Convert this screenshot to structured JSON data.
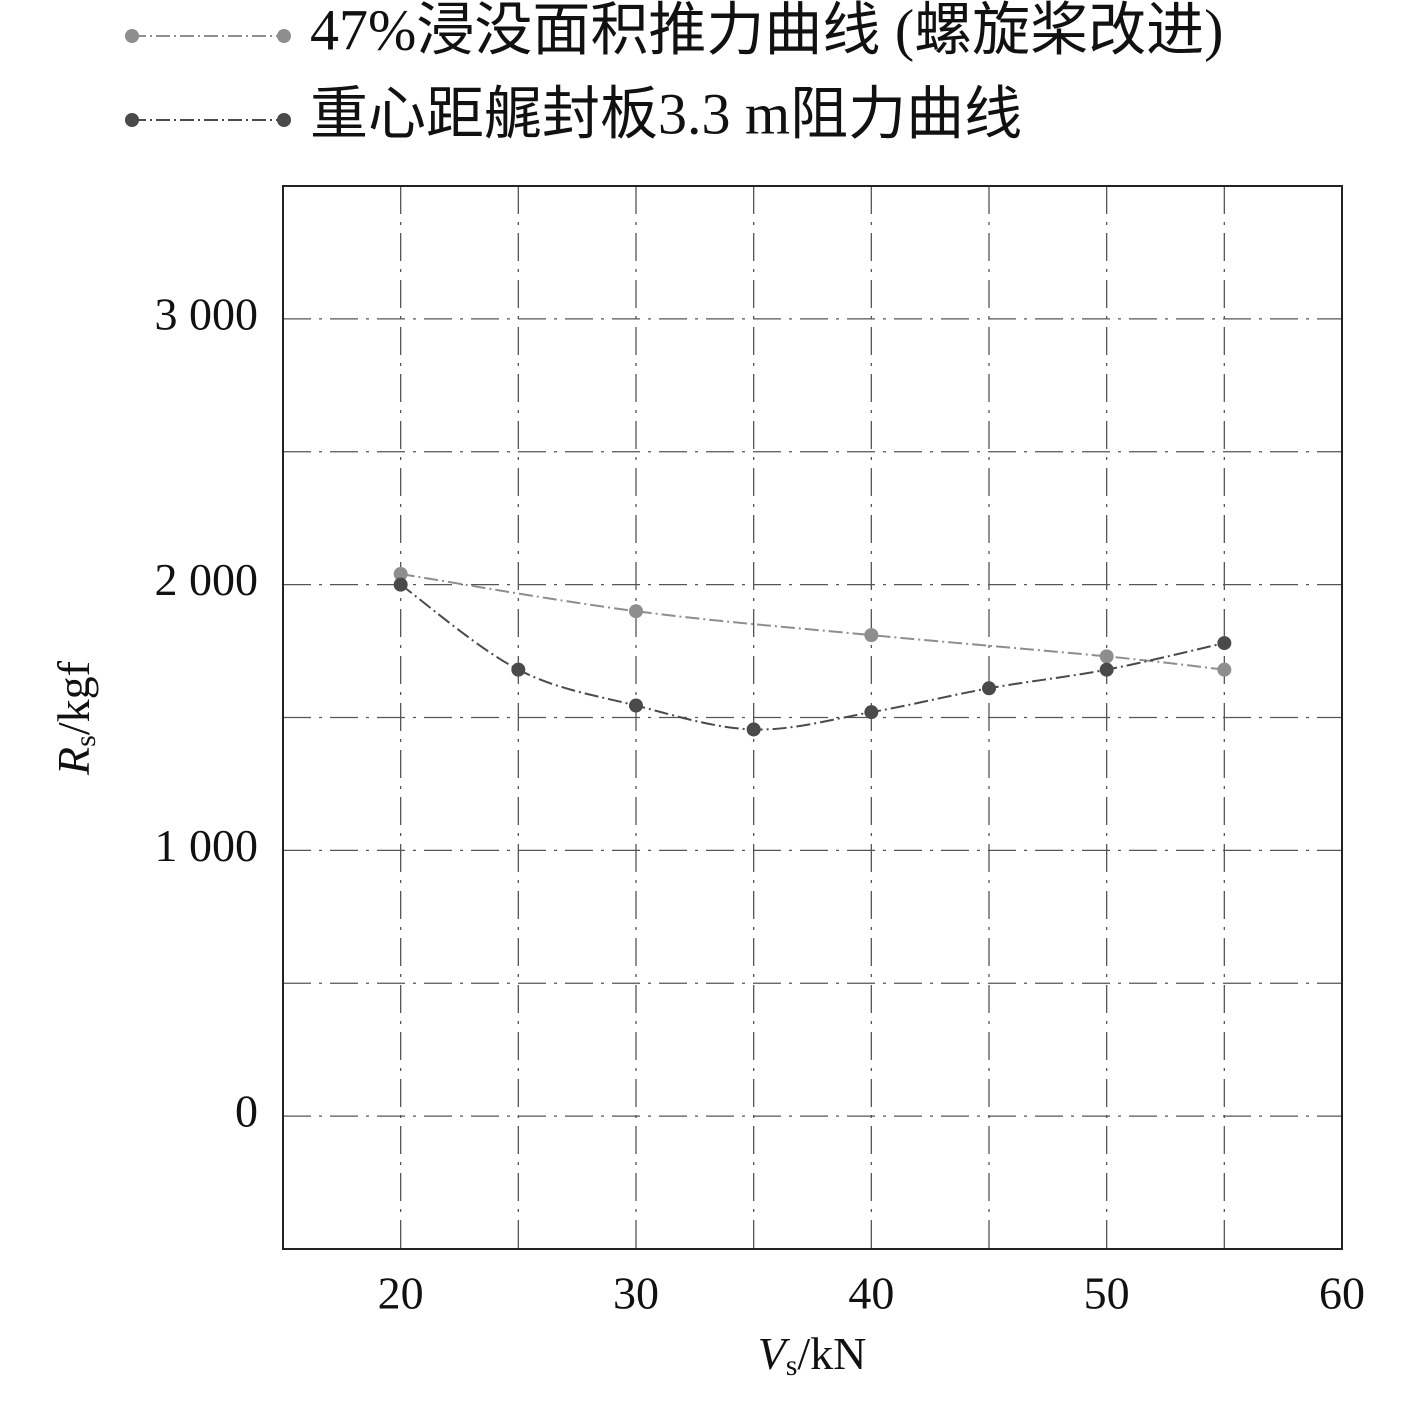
{
  "chart_data": {
    "type": "line",
    "xlabel": {
      "symbol": "V",
      "sub": "s",
      "unit": "/kN"
    },
    "ylabel": {
      "symbol": "R",
      "sub": "s",
      "unit": "/kgf"
    },
    "xlim": [
      15,
      60
    ],
    "xticks": [
      20,
      30,
      40,
      50,
      60
    ],
    "x_minor_grid": [
      25,
      35,
      45,
      55
    ],
    "ylim": [
      -500,
      3500
    ],
    "yticks": [
      0,
      {
        "value": 1000,
        "label": "1 000"
      },
      {
        "value": 2000,
        "label": "2 000"
      },
      {
        "value": 3000,
        "label": "3 000"
      }
    ],
    "y_minor_grid": [
      500,
      1500,
      2500
    ],
    "grid": true,
    "legend": "top",
    "series": [
      {
        "name": "47%浸没面积推力曲线 (螺旋桨改进)",
        "color": "#8e8e8e",
        "x": [
          20,
          30,
          40,
          50,
          55
        ],
        "values": [
          2040,
          1900,
          1810,
          1730,
          1680
        ]
      },
      {
        "name": "重心距艉封板3.3 m阻力曲线",
        "color": "#4a4a4a",
        "x": [
          20,
          25,
          30,
          35,
          40,
          45,
          50,
          55
        ],
        "values": [
          2000,
          1680,
          1545,
          1455,
          1520,
          1610,
          1680,
          1780
        ]
      }
    ]
  }
}
